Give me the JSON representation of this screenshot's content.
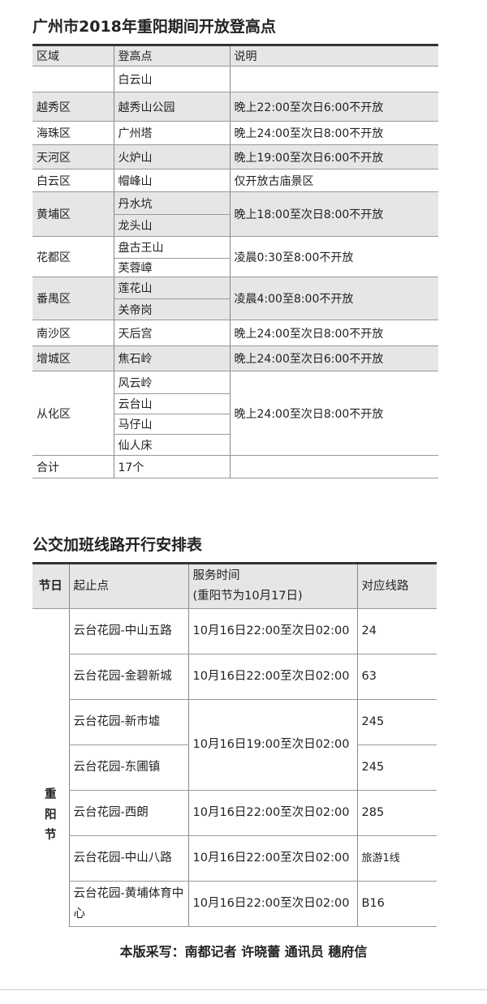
{
  "table1": {
    "title": "广州市2018年重阳期间开放登高点",
    "headers": [
      "区域",
      "登高点",
      "说明"
    ],
    "rows": [
      {
        "district": "",
        "spots": [
          "白云山"
        ],
        "note": ""
      },
      {
        "district": "越秀区",
        "spots": [
          "越秀山公园"
        ],
        "note": "晚上22:00至次日6:00不开放"
      },
      {
        "district": "海珠区",
        "spots": [
          "广州塔"
        ],
        "note": "晚上24:00至次日8:00不开放"
      },
      {
        "district": "天河区",
        "spots": [
          "火炉山"
        ],
        "note": "晚上19:00至次日6:00不开放"
      },
      {
        "district": "白云区",
        "spots": [
          "帽峰山"
        ],
        "note": "仅开放古庙景区"
      },
      {
        "district": "黄埔区",
        "spots": [
          "丹水坑",
          "龙头山"
        ],
        "note": "晚上18:00至次日8:00不开放"
      },
      {
        "district": "花都区",
        "spots": [
          "盘古王山",
          "芙蓉嶂"
        ],
        "note": "凌晨0:30至8:00不开放"
      },
      {
        "district": "番禺区",
        "spots": [
          "莲花山",
          "关帝岗"
        ],
        "note": "凌晨4:00至8:00不开放"
      },
      {
        "district": "南沙区",
        "spots": [
          "天后宫"
        ],
        "note": "晚上24:00至次日8:00不开放"
      },
      {
        "district": "增城区",
        "spots": [
          "焦石岭"
        ],
        "note": "晚上24:00至次日6:00不开放"
      },
      {
        "district": "从化区",
        "spots": [
          "风云岭",
          "云台山",
          "马仔山",
          "仙人床"
        ],
        "note": "晚上24:00至次日8:00不开放"
      }
    ],
    "total_label": "合计",
    "total_value": "17个"
  },
  "table2": {
    "title": "公交加班线路开行安排表",
    "headers": [
      "节日",
      "起止点",
      "服务时间(重阳节为10月17日)",
      "对应线路"
    ],
    "header_time_line1": "服务时间",
    "header_time_line2": "(重阳节为10月17日)",
    "festival": "重阳节",
    "rows": [
      {
        "route": "云台花园-中山五路",
        "time": "10月16日22:00至次日02:00",
        "line": "24"
      },
      {
        "route": "云台花园-金碧新城",
        "time": "10月16日22:00至次日02:00",
        "line": "63"
      },
      {
        "route": "云台花园-新市墟",
        "time": "10月16日19:00至次日02:00",
        "line": "245"
      },
      {
        "route": "云台花园-东圃镇",
        "time": "",
        "line": "245"
      },
      {
        "route": "云台花园-西朗",
        "time": "10月16日22:00至次日02:00",
        "line": "285"
      },
      {
        "route": "云台花园-中山八路",
        "time": "10月16日22:00至次日02:00",
        "line": "旅游1线"
      },
      {
        "route": "云台花园-黄埔体育中心",
        "time": "10月16日22:00至次日02:00",
        "line": "B16"
      }
    ]
  },
  "footer": "本版采写：南都记者 许晓蕾 通讯员 穗府信"
}
